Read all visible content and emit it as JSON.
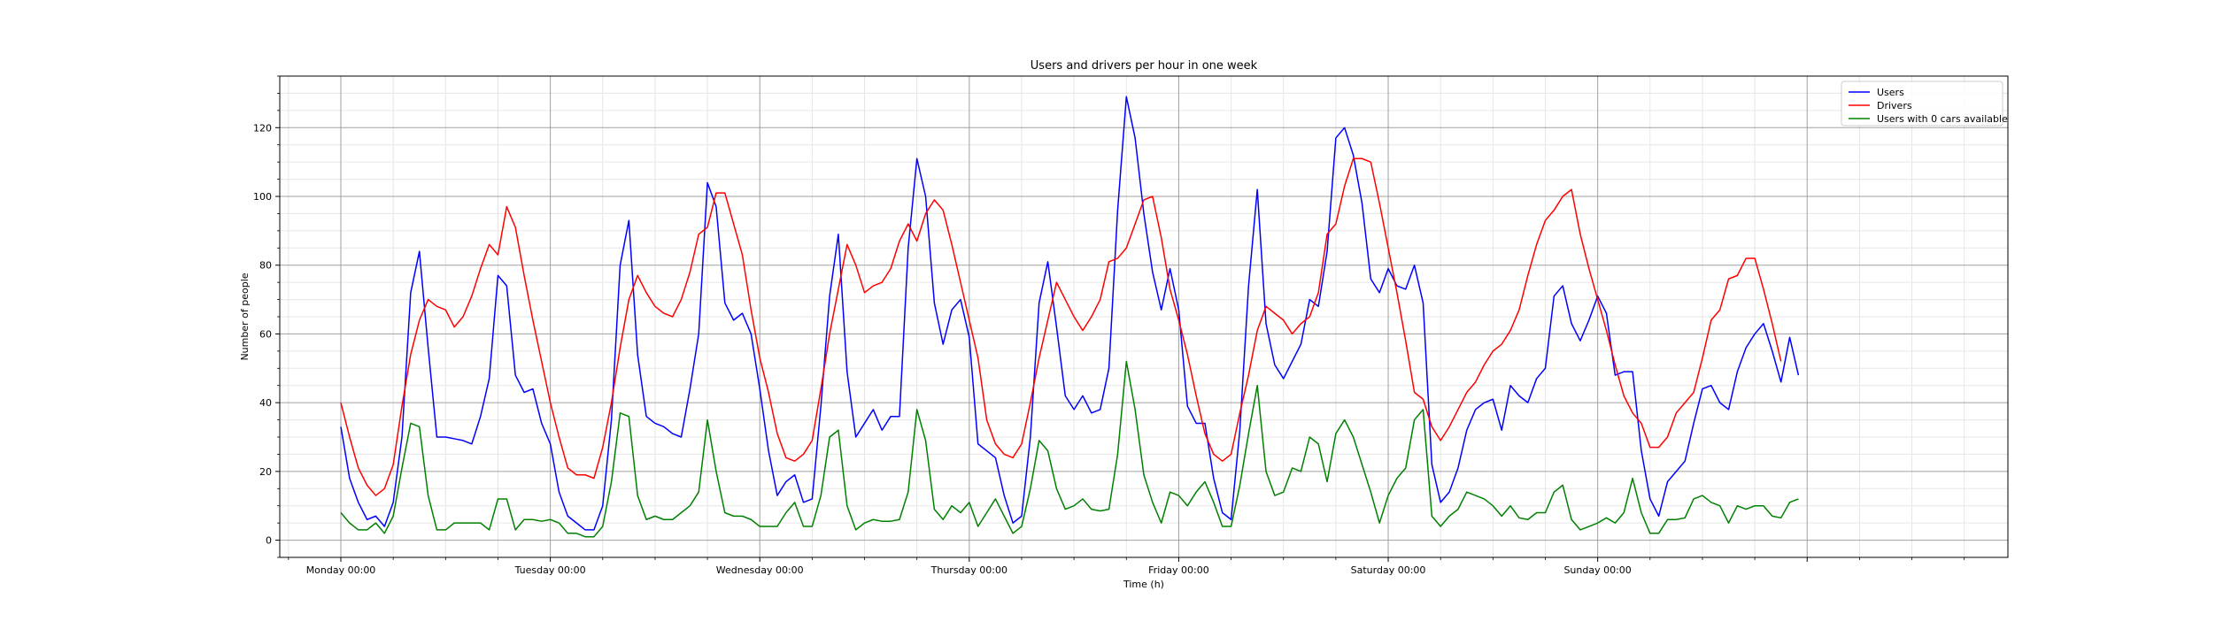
{
  "chart_data": {
    "type": "line",
    "title": "Users and drivers per hour in one week",
    "xlabel": "Time (h)",
    "ylabel": "Number of people",
    "xlim": [
      -7,
      191
    ],
    "ylim": [
      -5,
      135
    ],
    "x_ticks": [
      0,
      24,
      48,
      72,
      96,
      120,
      144,
      168
    ],
    "x_tick_labels": [
      "Monday 00:00",
      "Tuesday 00:00",
      "Wednesday 00:00",
      "Thursday 00:00",
      "Friday 00:00",
      "Saturday 00:00",
      "Sunday 00:00",
      ""
    ],
    "y_ticks": [
      0,
      20,
      40,
      60,
      80,
      100,
      120
    ],
    "grid": true,
    "minor_grid": true,
    "legend_position": "top-right",
    "series": [
      {
        "name": "Users",
        "color": "#0000ff",
        "values": [
          33,
          18,
          11,
          6,
          7,
          4,
          11,
          30,
          72,
          84,
          56,
          30,
          30,
          29.5,
          29,
          28,
          36,
          47,
          77,
          74,
          48,
          43,
          44,
          34,
          28,
          14,
          7,
          5,
          3,
          3,
          10,
          35,
          80,
          93,
          54,
          36,
          34,
          33,
          31,
          30,
          44,
          60,
          104,
          97,
          69,
          64,
          66,
          60,
          44,
          26,
          13,
          17,
          19,
          11,
          12,
          39,
          71,
          89,
          49,
          30,
          34,
          38,
          32,
          36,
          36,
          85,
          111,
          100,
          69,
          57,
          67,
          70,
          59,
          28,
          26,
          24,
          13,
          5,
          7,
          30,
          69,
          81,
          62,
          42,
          38,
          42,
          37,
          38,
          50,
          96,
          129,
          117,
          95,
          78,
          67,
          79,
          67,
          39,
          34,
          34,
          18,
          8,
          6,
          32,
          74,
          102,
          63,
          51,
          47,
          52,
          57,
          70,
          68,
          84,
          117,
          120,
          112,
          98,
          76,
          72,
          79,
          74,
          73,
          80,
          69,
          22,
          11,
          14,
          21,
          32,
          38,
          40,
          41,
          32,
          45,
          42,
          40,
          47,
          50,
          71,
          74,
          63,
          58,
          64,
          71,
          66,
          48,
          49,
          49,
          26,
          12,
          7,
          17,
          20,
          23,
          34,
          44,
          45,
          40,
          38,
          49,
          56,
          60,
          63,
          55,
          46,
          59,
          48
        ]
      },
      {
        "name": "Drivers",
        "color": "#ff0000",
        "values": [
          40,
          30,
          21,
          16,
          13,
          15,
          22,
          39,
          54,
          64,
          70,
          68,
          67,
          62,
          65,
          71,
          79,
          86,
          83,
          97,
          91,
          77,
          64,
          52,
          40,
          30,
          21,
          19,
          19,
          18,
          27,
          40,
          56,
          70,
          77,
          72,
          68,
          66,
          65,
          70,
          78,
          89,
          91,
          101,
          101,
          92,
          83,
          67,
          53,
          43,
          31,
          24,
          23,
          25,
          29,
          44,
          60,
          73,
          86,
          80,
          72,
          74,
          75,
          79,
          87,
          92,
          87,
          95,
          99,
          96,
          86,
          75,
          64,
          53,
          35,
          28,
          25,
          24,
          28,
          40,
          53,
          64,
          75,
          70,
          65,
          61,
          65,
          70,
          81,
          82,
          85,
          92,
          99,
          100,
          88,
          73,
          64,
          54,
          42,
          31,
          25,
          23,
          25,
          37,
          48,
          61,
          68,
          66,
          64,
          60,
          63,
          65,
          72,
          89,
          92,
          103,
          111,
          111,
          110,
          98,
          85,
          72,
          58,
          43,
          41,
          33,
          29,
          33,
          38,
          43,
          46,
          51,
          55,
          57,
          61,
          67,
          77,
          86,
          93,
          96,
          100,
          102,
          89,
          79,
          70,
          61,
          51,
          42,
          37,
          34,
          27,
          27,
          30,
          37,
          40,
          43,
          53,
          64,
          67,
          76,
          77,
          82,
          82,
          73,
          63,
          52
        ]
      },
      {
        "name": "Users with 0 cars available",
        "color": "#008000",
        "values": [
          8,
          5,
          3,
          3,
          5,
          2,
          7,
          21,
          34,
          33,
          13,
          3,
          3,
          5,
          5,
          5,
          5,
          3,
          12,
          12,
          3,
          6,
          6,
          5.5,
          6,
          5,
          2,
          2,
          1,
          1,
          4,
          17,
          37,
          36,
          13,
          6,
          7,
          6,
          6,
          8,
          10,
          14,
          35,
          20,
          8,
          7,
          7,
          6,
          4,
          4,
          4,
          8,
          11,
          4,
          4,
          13,
          30,
          32,
          10,
          3,
          5,
          6,
          5.5,
          5.5,
          6,
          14,
          38,
          29,
          9,
          6,
          10,
          8,
          11,
          4,
          8,
          12,
          7,
          2,
          4,
          15,
          29,
          26,
          15,
          9,
          10,
          12,
          9,
          8.5,
          9,
          25,
          52,
          38,
          19,
          11,
          5,
          14,
          13,
          10,
          14,
          17,
          11,
          4,
          4,
          16,
          31,
          45,
          20,
          13,
          14,
          21,
          20,
          30,
          28,
          17,
          31,
          35,
          30,
          22,
          14,
          5,
          13,
          18,
          21,
          35,
          38,
          7,
          4,
          7,
          9,
          14,
          13,
          12,
          10,
          7,
          10,
          6.5,
          6,
          8,
          8,
          14,
          16,
          6,
          3,
          4,
          5,
          6.5,
          5,
          8,
          18,
          8,
          2,
          2,
          6,
          6,
          6.5,
          12,
          13,
          11,
          10,
          5,
          10,
          9,
          10,
          10,
          7,
          6.5,
          11,
          12
        ]
      }
    ]
  }
}
